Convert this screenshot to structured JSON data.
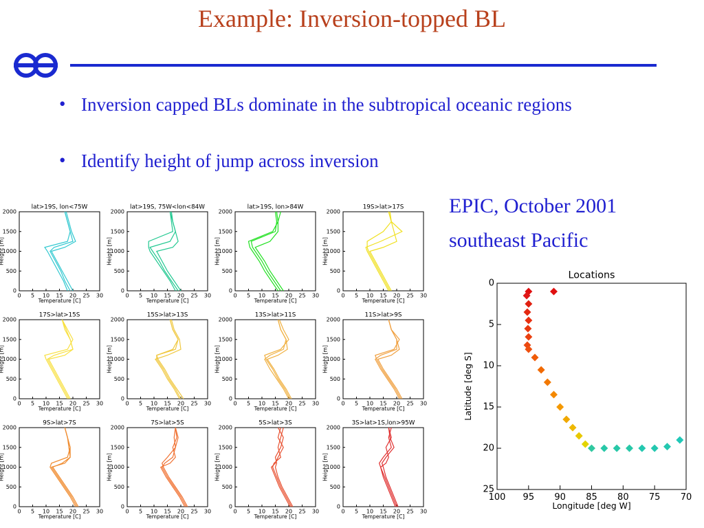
{
  "slide": {
    "title": "Example: Inversion-topped BL",
    "bullets": [
      "Inversion capped BLs dominate in the subtropical oceanic regions",
      "Identify height of jump across inversion"
    ],
    "caption": [
      "EPIC, October 2001",
      "southeast Pacific"
    ]
  },
  "chart_data": [
    {
      "type": "profile",
      "title": "lat>19S, lon<75W",
      "xlabel": "Temperature [C]",
      "ylabel": "Height [m]",
      "xlim": [
        0,
        30
      ],
      "xticks": [
        0,
        5,
        10,
        15,
        20,
        25,
        30
      ],
      "ylim": [
        0,
        2000
      ],
      "yticks": [
        0,
        500,
        1000,
        1500,
        2000
      ],
      "heights": [
        0,
        250,
        500,
        750,
        1000,
        1100,
        1250,
        1500,
        1750,
        2000
      ],
      "series": [
        {
          "color": "#30c8d0",
          "values": [
            19,
            17,
            15.5,
            13.5,
            11.5,
            13,
            20,
            19,
            18,
            17
          ]
        },
        {
          "color": "#30c8d0",
          "values": [
            18,
            16.5,
            14.5,
            12.5,
            10.5,
            9.5,
            18,
            19,
            18,
            17
          ]
        },
        {
          "color": "#30c8d0",
          "values": [
            20,
            18,
            16,
            14,
            12,
            17,
            21,
            19.5,
            18.5,
            17.5
          ]
        }
      ]
    },
    {
      "type": "profile",
      "title": "lat>19S, 75W<lon<84W",
      "xlabel": "Temperature [C]",
      "ylabel": "Height [m]",
      "xlim": [
        0,
        30
      ],
      "xticks": [
        0,
        5,
        10,
        15,
        20,
        25,
        30
      ],
      "ylim": [
        0,
        2000
      ],
      "yticks": [
        0,
        500,
        1000,
        1500,
        2000
      ],
      "heights": [
        0,
        250,
        500,
        750,
        1000,
        1100,
        1250,
        1500,
        1750,
        2000
      ],
      "series": [
        {
          "color": "#20c890",
          "values": [
            19,
            16.5,
            14,
            12,
            9.5,
            8.5,
            16,
            18,
            17,
            16
          ]
        },
        {
          "color": "#20c890",
          "values": [
            18,
            16,
            13.5,
            11,
            8.5,
            8,
            8,
            17,
            16.5,
            16
          ]
        },
        {
          "color": "#20c890",
          "values": [
            20,
            17.5,
            15,
            13,
            11,
            17,
            19,
            18,
            17,
            16.5
          ]
        }
      ]
    },
    {
      "type": "profile",
      "title": "lat>19S, lon>84W",
      "xlabel": "Temperature [C]",
      "ylabel": "Height [m]",
      "xlim": [
        0,
        30
      ],
      "xticks": [
        0,
        5,
        10,
        15,
        20,
        25,
        30
      ],
      "ylim": [
        0,
        2000
      ],
      "yticks": [
        0,
        500,
        1000,
        1500,
        2000
      ],
      "heights": [
        0,
        250,
        500,
        750,
        1000,
        1100,
        1250,
        1500,
        1750,
        2000
      ],
      "series": [
        {
          "color": "#20e020",
          "values": [
            17,
            14.5,
            12,
            10,
            7.5,
            6.5,
            6,
            15,
            15.5,
            15
          ]
        },
        {
          "color": "#20e020",
          "values": [
            18,
            15.5,
            13,
            11,
            8.5,
            7.5,
            13,
            16,
            16,
            15.5
          ]
        },
        {
          "color": "#20e020",
          "values": [
            16,
            13.5,
            11,
            9,
            6.5,
            5.5,
            5,
            14,
            16,
            17
          ]
        }
      ]
    },
    {
      "type": "profile",
      "title": "19S>lat>17S",
      "xlabel": "Temperature [C]",
      "ylabel": "Height [m]",
      "xlim": [
        0,
        30
      ],
      "xticks": [
        0,
        5,
        10,
        15,
        20,
        25,
        30
      ],
      "ylim": [
        0,
        2000
      ],
      "yticks": [
        0,
        500,
        1000,
        1500,
        2000
      ],
      "heights": [
        0,
        250,
        500,
        750,
        1000,
        1100,
        1250,
        1500,
        1750,
        2000
      ],
      "series": [
        {
          "color": "#f0e020",
          "values": [
            17,
            15,
            13,
            11,
            9,
            8.5,
            14,
            22,
            18,
            17
          ]
        },
        {
          "color": "#f0e020",
          "values": [
            17.5,
            15.5,
            13.5,
            11.5,
            9.5,
            9,
            9,
            15,
            18,
            17.5
          ]
        },
        {
          "color": "#f0e020",
          "values": [
            18,
            16,
            14,
            12,
            10,
            15,
            20,
            19,
            18,
            17
          ]
        }
      ]
    },
    {
      "type": "profile",
      "title": "17S>lat>15S",
      "xlabel": "Temperature [C]",
      "ylabel": "Height [m]",
      "xlim": [
        0,
        30
      ],
      "xticks": [
        0,
        5,
        10,
        15,
        20,
        25,
        30
      ],
      "ylim": [
        0,
        2000
      ],
      "yticks": [
        0,
        500,
        1000,
        1500,
        2000
      ],
      "heights": [
        0,
        250,
        500,
        750,
        1000,
        1100,
        1250,
        1500,
        1750,
        2000
      ],
      "series": [
        {
          "color": "#f8e040",
          "values": [
            18,
            16,
            14,
            12,
            10,
            9.5,
            18,
            20,
            18,
            16
          ]
        },
        {
          "color": "#f8e040",
          "values": [
            18.5,
            16.5,
            14.5,
            12.5,
            10.5,
            13,
            20,
            19,
            17.5,
            16
          ]
        },
        {
          "color": "#f8e040",
          "values": [
            19,
            17,
            15,
            13,
            11,
            17,
            20,
            19,
            17,
            16
          ]
        }
      ]
    },
    {
      "type": "profile",
      "title": "15S>lat>13S",
      "xlabel": "Temperature [C]",
      "ylabel": "Height [m]",
      "xlim": [
        0,
        30
      ],
      "xticks": [
        0,
        5,
        10,
        15,
        20,
        25,
        30
      ],
      "ylim": [
        0,
        2000
      ],
      "yticks": [
        0,
        500,
        1000,
        1500,
        2000
      ],
      "heights": [
        0,
        250,
        500,
        750,
        1000,
        1100,
        1250,
        1500,
        1750,
        2000
      ],
      "series": [
        {
          "color": "#f0c840",
          "values": [
            20,
            18,
            15.5,
            13.5,
            11,
            11,
            18,
            19,
            17,
            16
          ]
        },
        {
          "color": "#f0c840",
          "values": [
            19.5,
            17.5,
            15,
            13,
            10.5,
            15,
            20,
            19.5,
            17.5,
            16.5
          ]
        },
        {
          "color": "#f0c840",
          "values": [
            21,
            18.5,
            16,
            14,
            11.5,
            11,
            17,
            19,
            17,
            16
          ]
        }
      ]
    },
    {
      "type": "profile",
      "title": "13S>lat>11S",
      "xlabel": "Temperature [C]",
      "ylabel": "Height [m]",
      "xlim": [
        0,
        30
      ],
      "xticks": [
        0,
        5,
        10,
        15,
        20,
        25,
        30
      ],
      "ylim": [
        0,
        2000
      ],
      "yticks": [
        0,
        500,
        1000,
        1500,
        2000
      ],
      "heights": [
        0,
        250,
        500,
        750,
        1000,
        1100,
        1250,
        1500,
        1750,
        2000
      ],
      "series": [
        {
          "color": "#f0b040",
          "values": [
            20,
            18,
            15.5,
            13,
            11,
            13,
            18,
            19,
            17,
            16
          ]
        },
        {
          "color": "#f0b040",
          "values": [
            20.5,
            18.5,
            16,
            14,
            11.5,
            11,
            17,
            20,
            18,
            16.5
          ]
        },
        {
          "color": "#f0b040",
          "values": [
            21,
            19,
            16.5,
            14.5,
            12,
            16,
            19.5,
            19,
            17,
            16
          ]
        }
      ]
    },
    {
      "type": "profile",
      "title": "11S>lat>9S",
      "xlabel": "Temperature [C]",
      "ylabel": "Height [m]",
      "xlim": [
        0,
        30
      ],
      "xticks": [
        0,
        5,
        10,
        15,
        20,
        25,
        30
      ],
      "ylim": [
        0,
        2000
      ],
      "yticks": [
        0,
        500,
        1000,
        1500,
        2000
      ],
      "heights": [
        0,
        250,
        500,
        750,
        1000,
        1100,
        1250,
        1500,
        1750,
        2000
      ],
      "series": [
        {
          "color": "#f0a040",
          "values": [
            21,
            19,
            16.5,
            14,
            12,
            14,
            20,
            20,
            18,
            17
          ]
        },
        {
          "color": "#f0a040",
          "values": [
            21.5,
            19.5,
            17,
            14.5,
            12.5,
            12,
            19,
            21,
            18,
            17
          ]
        },
        {
          "color": "#f0a040",
          "values": [
            22,
            20,
            17.5,
            15,
            13,
            18,
            21,
            20,
            18,
            17
          ]
        }
      ]
    },
    {
      "type": "profile",
      "title": "9S>lat>7S",
      "xlabel": "Temperature [C]",
      "ylabel": "Height [m]",
      "xlim": [
        0,
        30
      ],
      "xticks": [
        0,
        5,
        10,
        15,
        20,
        25,
        30
      ],
      "ylim": [
        0,
        2000
      ],
      "yticks": [
        0,
        500,
        1000,
        1500,
        2000
      ],
      "heights": [
        0,
        250,
        500,
        750,
        1000,
        1100,
        1250,
        1500,
        1750,
        2000
      ],
      "series": [
        {
          "color": "#f08c30",
          "values": [
            21,
            19,
            16.5,
            14,
            11.5,
            12,
            18,
            19,
            18,
            17
          ]
        },
        {
          "color": "#f08c30",
          "values": [
            21.5,
            19.5,
            17,
            14.5,
            12,
            17,
            19,
            19,
            18,
            17
          ]
        },
        {
          "color": "#f08c30",
          "values": [
            22,
            20,
            17.5,
            15,
            12.5,
            16,
            19,
            18.5,
            18,
            17
          ]
        }
      ]
    },
    {
      "type": "profile",
      "title": "7S>lat>5S",
      "xlabel": "Temperature [C]",
      "ylabel": "Height [m]",
      "xlim": [
        0,
        30
      ],
      "xticks": [
        0,
        5,
        10,
        15,
        20,
        25,
        30
      ],
      "ylim": [
        0,
        2000
      ],
      "yticks": [
        0,
        500,
        1000,
        1500,
        2000
      ],
      "heights": [
        0,
        250,
        500,
        750,
        1000,
        1100,
        1250,
        1500,
        1750,
        2000
      ],
      "series": [
        {
          "color": "#f07030",
          "values": [
            22,
            20,
            17.5,
            15,
            13,
            14,
            17,
            18,
            19,
            18
          ]
        },
        {
          "color": "#f07030",
          "values": [
            21.5,
            19.5,
            17,
            14.5,
            12.5,
            16,
            18,
            17,
            18.5,
            18
          ]
        },
        {
          "color": "#f07030",
          "values": [
            22.5,
            20.5,
            18,
            15.5,
            13.5,
            13,
            15,
            18,
            17.5,
            18
          ]
        }
      ]
    },
    {
      "type": "profile",
      "title": "5S>lat>3S",
      "xlabel": "Temperature [C]",
      "ylabel": "Height [m]",
      "xlim": [
        0,
        30
      ],
      "xticks": [
        0,
        5,
        10,
        15,
        20,
        25,
        30
      ],
      "ylim": [
        0,
        2000
      ],
      "yticks": [
        0,
        500,
        1000,
        1500,
        2000
      ],
      "heights": [
        0,
        250,
        500,
        750,
        1000,
        1100,
        1250,
        1500,
        1750,
        2000
      ],
      "series": [
        {
          "color": "#e85030",
          "values": [
            21,
            19,
            17,
            15.5,
            14,
            14.5,
            17,
            16,
            17,
            18
          ]
        },
        {
          "color": "#e85030",
          "values": [
            20.5,
            18.5,
            16.5,
            15,
            13.5,
            15,
            16,
            18,
            16,
            17
          ]
        },
        {
          "color": "#e85030",
          "values": [
            21.5,
            19.5,
            17.5,
            16,
            15,
            15.5,
            15,
            17,
            18,
            16
          ]
        }
      ]
    },
    {
      "type": "profile",
      "title": "3S>lat>1S,lon>95W",
      "xlabel": "Temperature [C]",
      "ylabel": "Height [m]",
      "xlim": [
        0,
        30
      ],
      "xticks": [
        0,
        5,
        10,
        15,
        20,
        25,
        30
      ],
      "ylim": [
        0,
        2000
      ],
      "yticks": [
        0,
        500,
        1000,
        1500,
        2000
      ],
      "heights": [
        0,
        250,
        500,
        750,
        1000,
        1100,
        1250,
        1500,
        1750,
        2000
      ],
      "series": [
        {
          "color": "#e03030",
          "values": [
            20,
            18.5,
            17,
            15.5,
            14,
            13.5,
            15,
            18,
            17,
            18
          ]
        },
        {
          "color": "#e03030",
          "values": [
            19.5,
            18,
            16.5,
            15,
            14,
            16,
            17,
            16,
            18,
            17
          ]
        },
        {
          "color": "#e03030",
          "values": [
            20.5,
            19,
            17.5,
            16,
            15,
            14.5,
            16,
            19,
            17.5,
            17
          ]
        }
      ]
    },
    {
      "type": "scatter",
      "title": "Locations",
      "xlabel": "Longitude [deg W]",
      "ylabel": "Latitude [deg S]",
      "xlim": [
        100,
        70
      ],
      "xticks": [
        100,
        95,
        90,
        85,
        80,
        75,
        70
      ],
      "ylim": [
        25,
        0
      ],
      "yticks": [
        0,
        5,
        10,
        15,
        20,
        25
      ],
      "x": [
        95,
        95.3,
        95,
        95.2,
        95,
        95.1,
        95,
        95.2,
        95,
        94,
        93,
        92,
        91,
        90,
        89,
        88,
        87,
        86,
        85,
        83,
        81,
        79,
        77,
        75,
        73,
        71,
        91
      ],
      "y": [
        1,
        1.5,
        2.5,
        3.5,
        4.5,
        5.5,
        6.5,
        7.5,
        8,
        9,
        10.5,
        12,
        13.5,
        15,
        16.5,
        17.5,
        18.5,
        19.5,
        20,
        20,
        20,
        20,
        20,
        20,
        19.8,
        19,
        1
      ],
      "colors": [
        "#e01010",
        "#e01818",
        "#e02010",
        "#e42810",
        "#e83010",
        "#e83810",
        "#ea4010",
        "#ec4810",
        "#ee5010",
        "#f05c08",
        "#f06a04",
        "#f27800",
        "#f48800",
        "#f49800",
        "#f0a800",
        "#eeb800",
        "#e8c800",
        "#e2d400",
        "#30c8a0",
        "#28c8a8",
        "#28c8a8",
        "#28c8a8",
        "#24c8b0",
        "#24c8b0",
        "#24c8b0",
        "#20c8b8",
        "#e01010"
      ]
    }
  ]
}
